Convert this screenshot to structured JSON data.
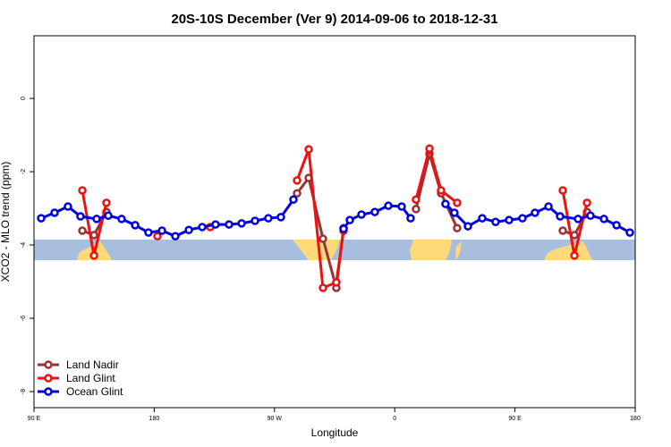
{
  "chart_data": {
    "type": "line",
    "title": "20S-10S December (Ver 9)   2014-09-06 to 2018-12-31",
    "x_label": "Longitude",
    "y_label": "XCO2 - MLO trend (ppm)",
    "xlim": [
      90,
      540
    ],
    "ylim": [
      -8.44,
      1.71
    ],
    "xticks": [
      {
        "value": 90,
        "label": "90 E"
      },
      {
        "value": 180,
        "label": "180"
      },
      {
        "value": 270,
        "label": "90 W"
      },
      {
        "value": 360,
        "label": "0"
      },
      {
        "value": 450,
        "label": "90 E"
      },
      {
        "value": 540,
        "label": "180"
      }
    ],
    "yticks": [
      0,
      -2,
      -4,
      -6,
      -8
    ],
    "legend": "bottom-left",
    "series": [
      {
        "name": "Land Nadir",
        "color": "#993333",
        "x": [
          126.2,
          134.9,
          144.2,
          null,
          286.9,
          295.6,
          306.3,
          316.3,
          321.7,
          null,
          375.9,
          386,
          394.7,
          406.7,
          null,
          485.8,
          494.5,
          503.9
        ],
        "values": [
          -3.61,
          -3.73,
          -3.1,
          null,
          -2.59,
          -2.17,
          -3.83,
          -5.17,
          -3.54,
          null,
          -3.02,
          -1.51,
          -2.59,
          -3.54,
          null,
          -3.61,
          -3.73,
          -3.1
        ]
      },
      {
        "name": "Land Glint",
        "color": "#ee1111",
        "x": [
          126.2,
          134.9,
          144.2,
          null,
          182.4,
          null,
          221.9,
          null,
          286.9,
          295.6,
          306.3,
          316.3,
          321.7,
          null,
          375.9,
          386,
          394.7,
          406.7,
          null,
          485.8,
          494.5,
          503.9
        ],
        "values": [
          -2.51,
          -4.29,
          -2.85,
          null,
          -3.76,
          null,
          -3.51,
          null,
          -2.24,
          -1.39,
          -5.17,
          -5.02,
          -3.61,
          null,
          -2.76,
          -1.37,
          -2.51,
          -2.85,
          null,
          -2.51,
          -4.29,
          -2.85
        ]
      },
      {
        "name": "Ocean Glint",
        "color": "#0000dd",
        "x": [
          95.4,
          105.4,
          115.4,
          124.8,
          136.9,
          145.6,
          155.6,
          165.7,
          175.7,
          185.8,
          195.8,
          205.9,
          215.9,
          225.9,
          236,
          245.4,
          255.4,
          265.4,
          274.8,
          284.2,
          null,
          321.7,
          326.4,
          335.1,
          345.1,
          355.2,
          365.2,
          371.9,
          null,
          398,
          404.7,
          414.8,
          425.5,
          435.5,
          445.6,
          455.6,
          465,
          475.1,
          483.8,
          497.2,
          506.5,
          516.6,
          526,
          536
        ],
        "values": [
          -3.27,
          -3.12,
          -2.95,
          -3.22,
          -3.29,
          -3.2,
          -3.29,
          -3.46,
          -3.66,
          -3.61,
          -3.76,
          -3.59,
          -3.51,
          -3.44,
          -3.44,
          -3.41,
          -3.34,
          -3.27,
          -3.24,
          -2.76,
          null,
          -3.56,
          -3.32,
          -3.17,
          -3.1,
          -2.93,
          -2.95,
          -3.27,
          null,
          -2.88,
          -3.12,
          -3.49,
          -3.27,
          -3.37,
          -3.32,
          -3.27,
          -3.12,
          -2.95,
          -3.22,
          -3.29,
          -3.2,
          -3.29,
          -3.46,
          -3.66
        ]
      }
    ]
  }
}
